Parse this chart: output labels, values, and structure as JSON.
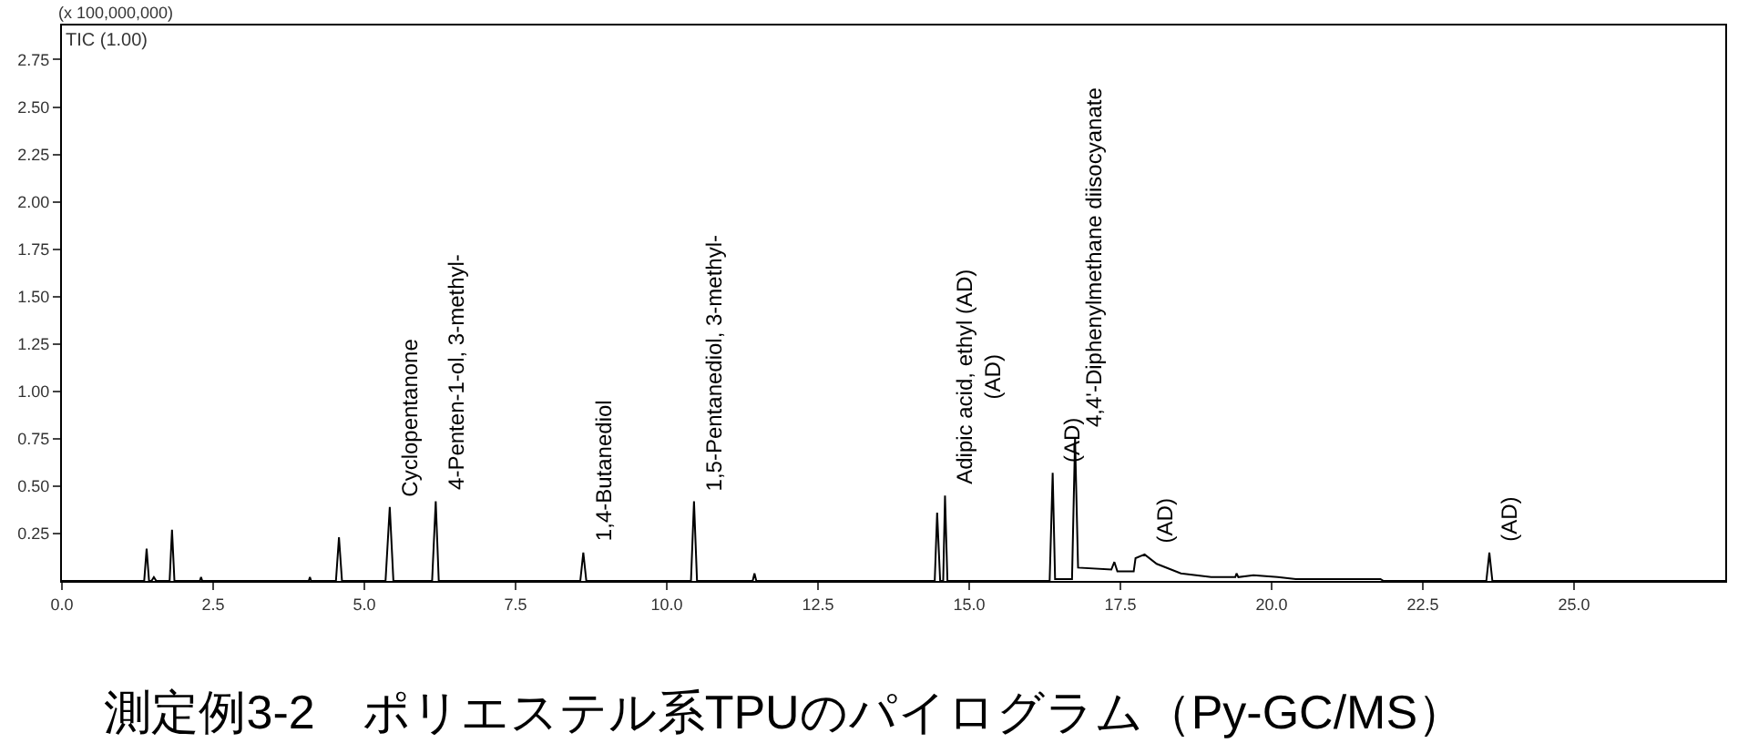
{
  "chart_data": {
    "type": "line",
    "title": "測定例3-2　ポリエステル系TPUのパイログラム（Py-GC/MS）",
    "x": [
      0,
      1.36,
      1.4,
      1.44,
      1.48,
      1.52,
      1.56,
      1.78,
      1.82,
      1.86,
      2.28,
      2.3,
      2.32,
      4.08,
      4.1,
      4.12,
      4.53,
      4.58,
      4.63,
      5.35,
      5.42,
      5.48,
      6.12,
      6.18,
      6.23,
      8.57,
      8.62,
      8.67,
      10.4,
      10.45,
      10.5,
      11.42,
      11.45,
      11.48,
      14.43,
      14.47,
      14.52,
      14.57,
      14.6,
      14.64,
      16.33,
      16.38,
      16.42,
      16.7,
      16.75,
      16.8,
      17.35,
      17.4,
      17.45,
      17.72,
      17.75,
      17.9,
      18.1,
      18.5,
      19.0,
      19.4,
      19.42,
      19.45,
      19.7,
      20.1,
      20.4,
      21.8,
      21.85,
      23.55,
      23.6,
      23.65,
      27.5
    ],
    "series": [
      {
        "color": "#000000",
        "values": [
          0,
          0,
          0.17,
          0,
          0,
          0.02,
          0,
          0,
          0.27,
          0,
          0,
          0.02,
          0,
          0,
          0.02,
          0,
          0,
          0.23,
          0,
          0,
          0.39,
          0,
          0,
          0.42,
          0,
          0,
          0.15,
          0,
          0,
          0.42,
          0,
          0,
          0.04,
          0,
          0,
          0.36,
          0,
          0,
          0.45,
          0,
          0,
          0.57,
          0.01,
          0.01,
          0.75,
          0.07,
          0.06,
          0.1,
          0.05,
          0.05,
          0.12,
          0.14,
          0.09,
          0.04,
          0.02,
          0.02,
          0.04,
          0.02,
          0.03,
          0.02,
          0.01,
          0.01,
          0,
          0,
          0.15,
          0,
          0
        ]
      }
    ],
    "xlim": [
      0,
      27.5
    ],
    "ylim": [
      0,
      2.93
    ],
    "xticks": [
      {
        "value": 0,
        "label": "0.0"
      },
      {
        "value": 2.5,
        "label": "2.5"
      },
      {
        "value": 5,
        "label": "5.0"
      },
      {
        "value": 7.5,
        "label": "7.5"
      },
      {
        "value": 10,
        "label": "10.0"
      },
      {
        "value": 12.5,
        "label": "12.5"
      },
      {
        "value": 15,
        "label": "15.0"
      },
      {
        "value": 17.5,
        "label": "17.5"
      },
      {
        "value": 20,
        "label": "20.0"
      },
      {
        "value": 22.5,
        "label": "22.5"
      },
      {
        "value": 25,
        "label": "25.0"
      }
    ],
    "yticks": [
      {
        "value": 0.25,
        "label": "0.25"
      },
      {
        "value": 0.5,
        "label": "0.50"
      },
      {
        "value": 0.75,
        "label": "0.75"
      },
      {
        "value": 1,
        "label": "1.00"
      },
      {
        "value": 1.25,
        "label": "1.25"
      },
      {
        "value": 1.5,
        "label": "1.50"
      },
      {
        "value": 1.75,
        "label": "1.75"
      },
      {
        "value": 2,
        "label": "2.00"
      },
      {
        "value": 2.25,
        "label": "2.25"
      },
      {
        "value": 2.5,
        "label": "2.50"
      },
      {
        "value": 2.75,
        "label": "2.75"
      }
    ],
    "annotations": [
      "(x 100,000,000)",
      "TIC (1.00)",
      {
        "text": "Cyclopentanone",
        "x": 5.42,
        "y": 0.39
      },
      {
        "text": "4-Penten-1-ol, 3-methyl-",
        "x": 6.18,
        "y": 0.42
      },
      {
        "text": "1,4-Butanediol",
        "x": 8.62,
        "y": 0.15
      },
      {
        "text": "1,5-Pentanediol, 3-methyl-",
        "x": 10.45,
        "y": 0.42
      },
      {
        "text": "Adipic acid, ethyl (AD)\n(AD)",
        "x": 14.6,
        "y": 0.45
      },
      {
        "text": "(AD)",
        "x": 16.38,
        "y": 0.57
      },
      {
        "text": "4,4'-Diphenylmethane diisocyanate",
        "x": 16.75,
        "y": 0.75
      },
      {
        "text": "(AD)",
        "x": 17.9,
        "y": 0.14
      },
      {
        "text": "(AD)",
        "x": 23.6,
        "y": 0.15
      }
    ],
    "marker": "none",
    "line_style": "solid"
  }
}
